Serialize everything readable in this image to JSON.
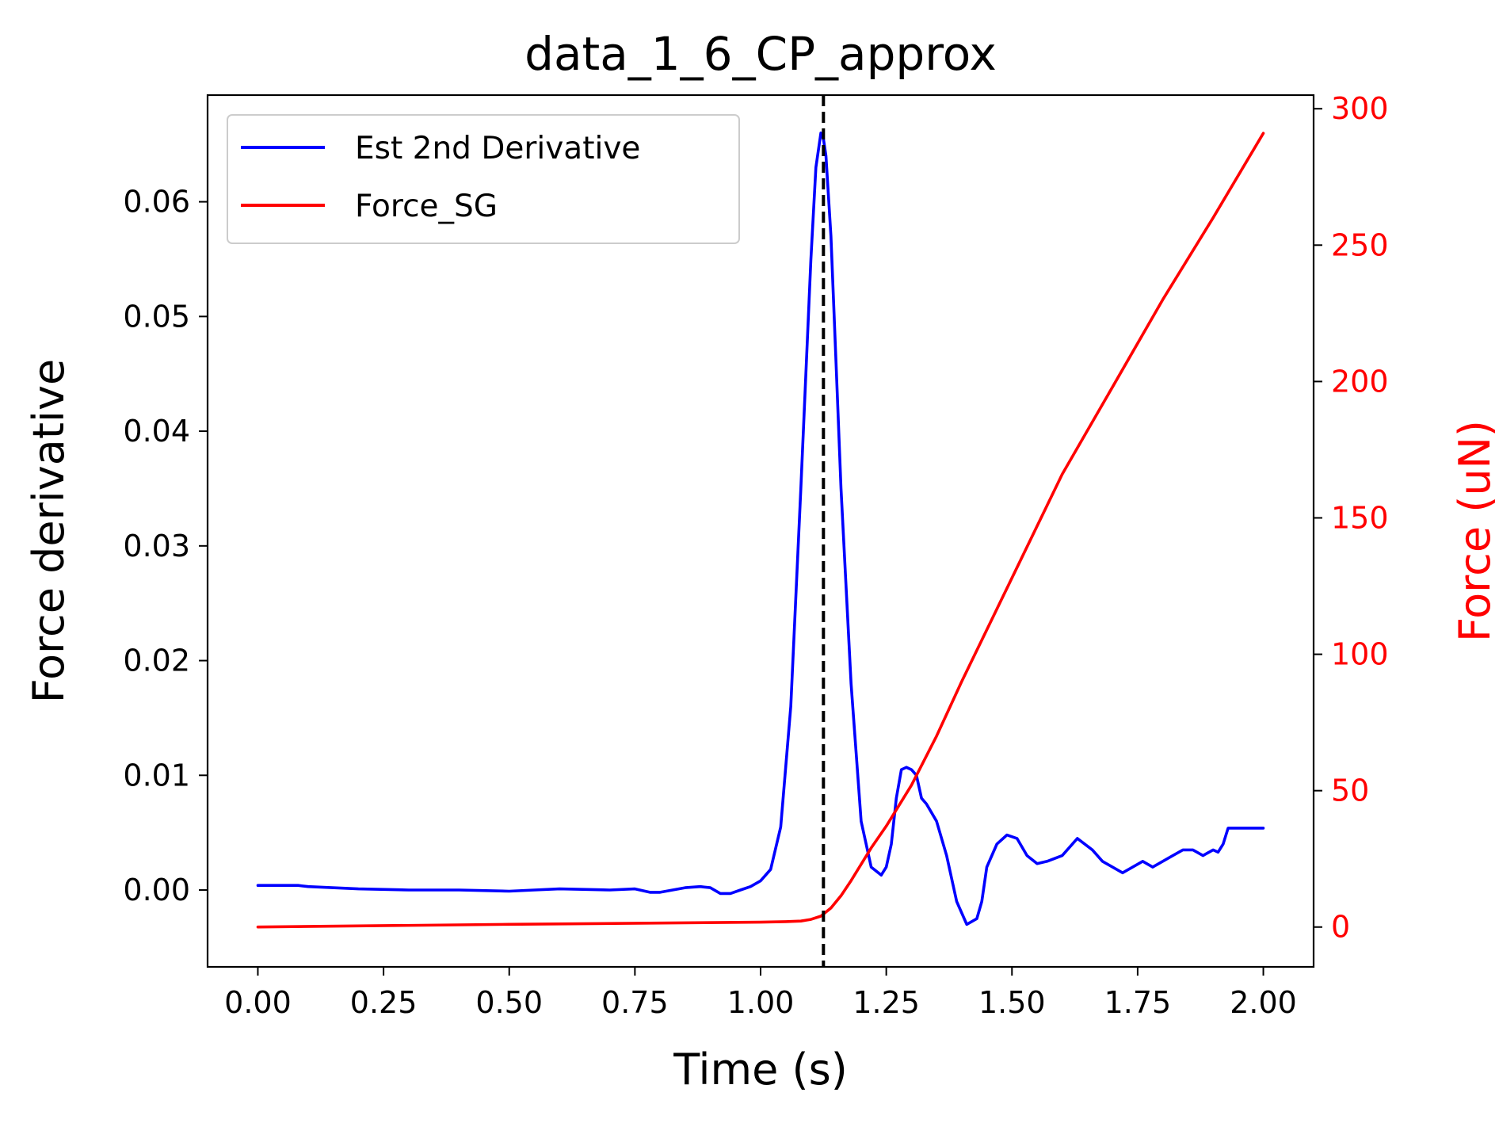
{
  "chart_data": {
    "type": "line",
    "title": "data_1_6_CP_approx",
    "xlabel": "Time (s)",
    "ylabel": "Force derivative",
    "ylabel_right": "Force (uN)",
    "xlim": [
      -0.1,
      2.1
    ],
    "ylim": [
      -0.0067,
      0.0693
    ],
    "ylim_right": [
      -14.6,
      305
    ],
    "xticks": [
      0.0,
      0.25,
      0.5,
      0.75,
      1.0,
      1.25,
      1.5,
      1.75,
      2.0
    ],
    "xtick_labels": [
      "0.00",
      "0.25",
      "0.50",
      "0.75",
      "1.00",
      "1.25",
      "1.50",
      "1.75",
      "2.00"
    ],
    "yticks": [
      0.0,
      0.01,
      0.02,
      0.03,
      0.04,
      0.05,
      0.06
    ],
    "ytick_labels": [
      "0.00",
      "0.01",
      "0.02",
      "0.03",
      "0.04",
      "0.05",
      "0.06"
    ],
    "yticks_right": [
      0,
      50,
      100,
      150,
      200,
      250,
      300
    ],
    "ytick_labels_right": [
      "0",
      "50",
      "100",
      "150",
      "200",
      "250",
      "300"
    ],
    "grid": false,
    "legend_position": "top-left",
    "vline": {
      "x": 1.125,
      "color": "#000000",
      "style": "dashed"
    },
    "series": [
      {
        "name": "Est 2nd Derivative",
        "axis": "left",
        "color": "#0000ff",
        "x": [
          0.0,
          0.05,
          0.08,
          0.1,
          0.2,
          0.3,
          0.4,
          0.5,
          0.55,
          0.6,
          0.7,
          0.75,
          0.78,
          0.8,
          0.85,
          0.88,
          0.9,
          0.92,
          0.94,
          0.96,
          0.98,
          1.0,
          1.02,
          1.04,
          1.06,
          1.08,
          1.1,
          1.11,
          1.12,
          1.125,
          1.13,
          1.14,
          1.15,
          1.16,
          1.18,
          1.2,
          1.22,
          1.24,
          1.25,
          1.26,
          1.27,
          1.28,
          1.29,
          1.3,
          1.31,
          1.32,
          1.33,
          1.35,
          1.37,
          1.39,
          1.41,
          1.43,
          1.44,
          1.45,
          1.47,
          1.49,
          1.51,
          1.53,
          1.55,
          1.57,
          1.6,
          1.63,
          1.66,
          1.68,
          1.7,
          1.72,
          1.74,
          1.76,
          1.78,
          1.8,
          1.82,
          1.84,
          1.86,
          1.88,
          1.9,
          1.91,
          1.92,
          1.93,
          1.94,
          2.0
        ],
        "y": [
          0.0004,
          0.0004,
          0.0004,
          0.0003,
          0.0001,
          0.0,
          0.0,
          -0.0001,
          0.0,
          0.0001,
          0.0,
          0.0001,
          -0.0002,
          -0.0002,
          0.0002,
          0.0003,
          0.0002,
          -0.0003,
          -0.0003,
          0.0,
          0.0003,
          0.0008,
          0.0018,
          0.0055,
          0.016,
          0.035,
          0.055,
          0.063,
          0.066,
          0.0655,
          0.064,
          0.057,
          0.046,
          0.035,
          0.018,
          0.006,
          0.002,
          0.0013,
          0.002,
          0.004,
          0.008,
          0.0105,
          0.0107,
          0.0105,
          0.01,
          0.008,
          0.0075,
          0.006,
          0.003,
          -0.001,
          -0.003,
          -0.0025,
          -0.001,
          0.002,
          0.004,
          0.0048,
          0.0045,
          0.003,
          0.0023,
          0.0025,
          0.003,
          0.0045,
          0.0035,
          0.0025,
          0.002,
          0.0015,
          0.002,
          0.0025,
          0.002,
          0.0025,
          0.003,
          0.0035,
          0.0035,
          0.003,
          0.0035,
          0.0033,
          0.004,
          0.0054,
          0.0054,
          0.0054
        ]
      },
      {
        "name": "Force_SG",
        "axis": "right",
        "color": "#ff0000",
        "x": [
          0.0,
          0.5,
          1.0,
          1.05,
          1.08,
          1.1,
          1.12,
          1.14,
          1.16,
          1.18,
          1.2,
          1.22,
          1.25,
          1.3,
          1.35,
          1.4,
          1.5,
          1.6,
          1.7,
          1.8,
          1.9,
          2.0
        ],
        "y": [
          0.0,
          1.0,
          1.8,
          2.0,
          2.2,
          2.8,
          4.0,
          7.0,
          11.5,
          17.0,
          23.0,
          29.0,
          37.0,
          52.0,
          70.0,
          90.0,
          128.0,
          166.0,
          198.0,
          230.0,
          260.0,
          291.0
        ]
      }
    ]
  }
}
